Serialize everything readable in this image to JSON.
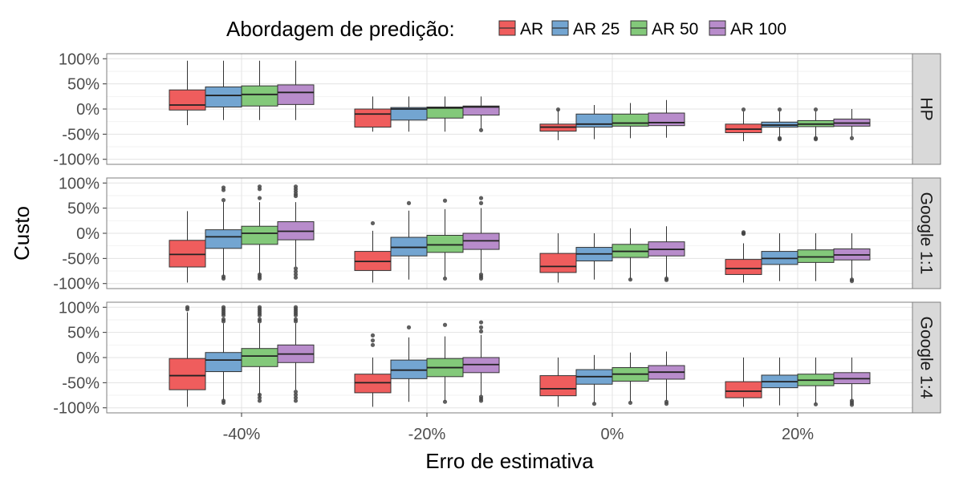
{
  "chart_data": {
    "type": "boxplot",
    "xlabel": "Erro de estimativa",
    "ylabel": "Custo",
    "legend": {
      "title": "Abordagem de predição:",
      "position": "top",
      "labels": [
        "AR",
        "AR 25",
        "AR 50",
        "AR 100"
      ]
    },
    "colors": [
      "#ef5d5d",
      "#73a5d1",
      "#83c97a",
      "#b88ccb"
    ],
    "categories": [
      "-40%",
      "-20%",
      "0%",
      "20%"
    ],
    "y_ticks": [
      -100,
      -50,
      0,
      50,
      100
    ],
    "y_tick_labels": [
      "-100%",
      "-50%",
      "0%",
      "50%",
      "100%"
    ],
    "ylim": [
      -110,
      110
    ],
    "grid": true,
    "facets": [
      {
        "label": "HP",
        "boxes": [
          [
            {
              "low": -32,
              "q1": -2,
              "median": 8,
              "q3": 38,
              "high": 96,
              "outliers": []
            },
            {
              "low": -22,
              "q1": 4,
              "median": 27,
              "q3": 44,
              "high": 96,
              "outliers": []
            },
            {
              "low": -22,
              "q1": 6,
              "median": 29,
              "q3": 46,
              "high": 96,
              "outliers": []
            },
            {
              "low": -22,
              "q1": 9,
              "median": 33,
              "q3": 48,
              "high": 96,
              "outliers": []
            }
          ],
          [
            {
              "low": -45,
              "q1": -36,
              "median": -10,
              "q3": 0,
              "high": 25,
              "outliers": []
            },
            {
              "low": -45,
              "q1": -22,
              "median": 0,
              "q3": 3,
              "high": 25,
              "outliers": []
            },
            {
              "low": -45,
              "q1": -18,
              "median": 2,
              "q3": 4,
              "high": 25,
              "outliers": []
            },
            {
              "low": -40,
              "q1": -12,
              "median": 4,
              "q3": 6,
              "high": 25,
              "outliers": [
                -42
              ]
            }
          ],
          [
            {
              "low": -62,
              "q1": -44,
              "median": -36,
              "q3": -30,
              "high": 0,
              "outliers": [
                -1
              ]
            },
            {
              "low": -60,
              "q1": -36,
              "median": -30,
              "q3": -10,
              "high": 8,
              "outliers": []
            },
            {
              "low": -58,
              "q1": -34,
              "median": -28,
              "q3": -10,
              "high": 12,
              "outliers": []
            },
            {
              "low": -57,
              "q1": -33,
              "median": -27,
              "q3": -8,
              "high": 18,
              "outliers": []
            }
          ],
          [
            {
              "low": -64,
              "q1": -47,
              "median": -40,
              "q3": -30,
              "high": -5,
              "outliers": [
                -1
              ]
            },
            {
              "low": -56,
              "q1": -36,
              "median": -32,
              "q3": -26,
              "high": -5,
              "outliers": [
                -1,
                -58,
                -60
              ]
            },
            {
              "low": -56,
              "q1": -35,
              "median": -30,
              "q3": -23,
              "high": -5,
              "outliers": [
                -1,
                -58,
                -60
              ]
            },
            {
              "low": -55,
              "q1": -34,
              "median": -28,
              "q3": -20,
              "high": 0,
              "outliers": [
                -58
              ]
            }
          ]
        ]
      },
      {
        "label": "Google 1:1",
        "boxes": [
          [
            {
              "low": -98,
              "q1": -67,
              "median": -42,
              "q3": -14,
              "high": 44,
              "outliers": []
            },
            {
              "low": -85,
              "q1": -30,
              "median": -7,
              "q3": 7,
              "high": 62,
              "outliers": [
                66,
                86,
                91,
                -86,
                -90
              ]
            },
            {
              "low": -82,
              "q1": -22,
              "median": 0,
              "q3": 14,
              "high": 62,
              "outliers": [
                70,
                88,
                93,
                -82,
                -86,
                -90
              ]
            },
            {
              "low": -66,
              "q1": -13,
              "median": 4,
              "q3": 23,
              "high": 62,
              "outliers": [
                74,
                78,
                83,
                88,
                93,
                -70,
                -76,
                -82,
                -88
              ]
            }
          ],
          [
            {
              "low": -98,
              "q1": -74,
              "median": -56,
              "q3": -36,
              "high": 5,
              "outliers": [
                20
              ]
            },
            {
              "low": -92,
              "q1": -45,
              "median": -28,
              "q3": -8,
              "high": 45,
              "outliers": [
                60
              ]
            },
            {
              "low": -88,
              "q1": -38,
              "median": -23,
              "q3": -4,
              "high": 48,
              "outliers": [
                65,
                -90
              ]
            },
            {
              "low": -78,
              "q1": -32,
              "median": -15,
              "q3": 0,
              "high": 50,
              "outliers": [
                70,
                60,
                -82,
                -86,
                -90
              ]
            }
          ],
          [
            {
              "low": -98,
              "q1": -78,
              "median": -66,
              "q3": -40,
              "high": 0,
              "outliers": []
            },
            {
              "low": -92,
              "q1": -55,
              "median": -41,
              "q3": -28,
              "high": 0,
              "outliers": []
            },
            {
              "low": -92,
              "q1": -48,
              "median": -36,
              "q3": -22,
              "high": 10,
              "outliers": [
                -92
              ]
            },
            {
              "low": -88,
              "q1": -45,
              "median": -32,
              "q3": -17,
              "high": 14,
              "outliers": [
                -90,
                -93
              ]
            }
          ],
          [
            {
              "low": -98,
              "q1": -82,
              "median": -70,
              "q3": -52,
              "high": -20,
              "outliers": [
                0,
                2,
                -1
              ]
            },
            {
              "low": -95,
              "q1": -62,
              "median": -50,
              "q3": -36,
              "high": 0,
              "outliers": []
            },
            {
              "low": -95,
              "q1": -58,
              "median": -47,
              "q3": -33,
              "high": 0,
              "outliers": []
            },
            {
              "low": -90,
              "q1": -53,
              "median": -43,
              "q3": -31,
              "high": 0,
              "outliers": [
                -92,
                -95
              ]
            }
          ]
        ]
      },
      {
        "label": "Google 1:4",
        "boxes": [
          [
            {
              "low": -98,
              "q1": -64,
              "median": -36,
              "q3": -2,
              "high": 90,
              "outliers": [
                100,
                96
              ]
            },
            {
              "low": -85,
              "q1": -28,
              "median": -5,
              "q3": 10,
              "high": 68,
              "outliers": [
                100,
                96,
                92,
                88,
                84,
                76,
                72,
                -86,
                -90
              ]
            },
            {
              "low": -80,
              "q1": -18,
              "median": 3,
              "q3": 18,
              "high": 68,
              "outliers": [
                100,
                96,
                92,
                88,
                84,
                76,
                72,
                -74,
                -80,
                -86
              ]
            },
            {
              "low": -64,
              "q1": -10,
              "median": 7,
              "q3": 25,
              "high": 68,
              "outliers": [
                100,
                96,
                92,
                88,
                84,
                76,
                72,
                -68,
                -74,
                -80,
                -86
              ]
            }
          ],
          [
            {
              "low": -98,
              "q1": -70,
              "median": -50,
              "q3": -33,
              "high": 0,
              "outliers": [
                44,
                34,
                25
              ]
            },
            {
              "low": -88,
              "q1": -42,
              "median": -25,
              "q3": -5,
              "high": 40,
              "outliers": [
                60
              ]
            },
            {
              "low": -86,
              "q1": -38,
              "median": -20,
              "q3": -2,
              "high": 42,
              "outliers": [
                65,
                -88
              ]
            },
            {
              "low": -76,
              "q1": -30,
              "median": -14,
              "q3": 0,
              "high": 45,
              "outliers": [
                70,
                60,
                52,
                -78,
                -82,
                -86
              ]
            }
          ],
          [
            {
              "low": -98,
              "q1": -76,
              "median": -62,
              "q3": -36,
              "high": 0,
              "outliers": []
            },
            {
              "low": -90,
              "q1": -53,
              "median": -38,
              "q3": -24,
              "high": 5,
              "outliers": [
                -92
              ]
            },
            {
              "low": -88,
              "q1": -47,
              "median": -33,
              "q3": -20,
              "high": 10,
              "outliers": [
                -90
              ]
            },
            {
              "low": -86,
              "q1": -43,
              "median": -29,
              "q3": -16,
              "high": 12,
              "outliers": [
                -88,
                -92
              ]
            }
          ],
          [
            {
              "low": -98,
              "q1": -80,
              "median": -67,
              "q3": -48,
              "high": 0,
              "outliers": []
            },
            {
              "low": -95,
              "q1": -60,
              "median": -48,
              "q3": -35,
              "high": 0,
              "outliers": []
            },
            {
              "low": -92,
              "q1": -56,
              "median": -45,
              "q3": -33,
              "high": 0,
              "outliers": [
                -93
              ]
            },
            {
              "low": -85,
              "q1": -52,
              "median": -42,
              "q3": -30,
              "high": 0,
              "outliers": [
                -86,
                -90,
                -94
              ]
            }
          ]
        ]
      }
    ]
  }
}
